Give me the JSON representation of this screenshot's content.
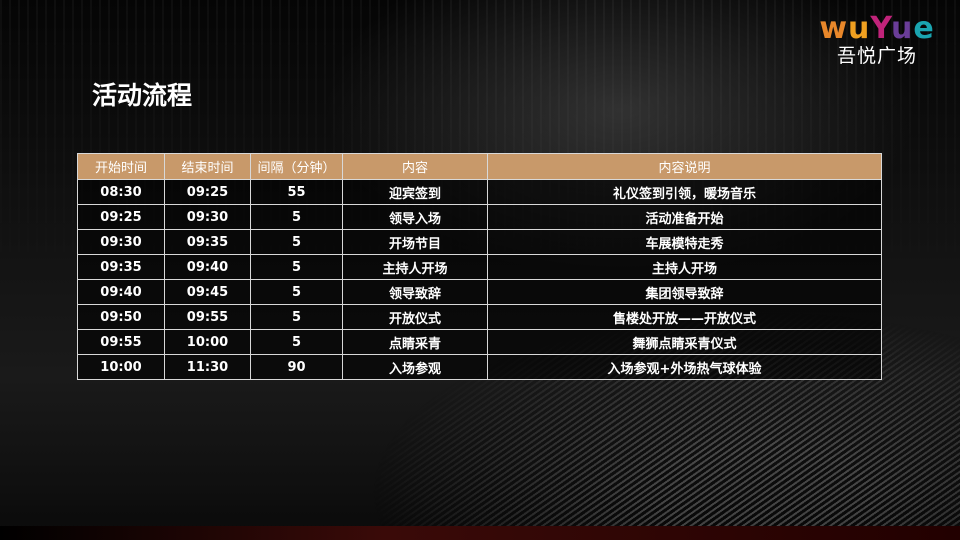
{
  "logo": {
    "letters": [
      {
        "ch": "w",
        "color": "#e8872a"
      },
      {
        "ch": "u",
        "color": "#f0a020"
      },
      {
        "ch": "Y",
        "color": "#c0237a"
      },
      {
        "ch": "u",
        "color": "#6a3d98"
      },
      {
        "ch": "e",
        "color": "#1aa5b0"
      }
    ],
    "name": "吾悦广场"
  },
  "title": "活动流程",
  "colors": {
    "header": "#c8996a"
  },
  "table": {
    "headers": [
      "开始时间",
      "结束时间",
      "间隔（分钟）",
      "内容",
      "内容说明"
    ],
    "rows": [
      [
        "08:30",
        "09:25",
        "55",
        "迎宾签到",
        "礼仪签到引领，暖场音乐"
      ],
      [
        "09:25",
        "09:30",
        "5",
        "领导入场",
        "活动准备开始"
      ],
      [
        "09:30",
        "09:35",
        "5",
        "开场节目",
        "车展模特走秀"
      ],
      [
        "09:35",
        "09:40",
        "5",
        "主持人开场",
        "主持人开场"
      ],
      [
        "09:40",
        "09:45",
        "5",
        "领导致辞",
        "集团领导致辞"
      ],
      [
        "09:50",
        "09:55",
        "5",
        "开放仪式",
        "售楼处开放——开放仪式"
      ],
      [
        "09:55",
        "10:00",
        "5",
        "点睛采青",
        "舞狮点睛采青仪式"
      ],
      [
        "10:00",
        "11:30",
        "90",
        "入场参观",
        "入场参观+外场热气球体验"
      ]
    ]
  }
}
